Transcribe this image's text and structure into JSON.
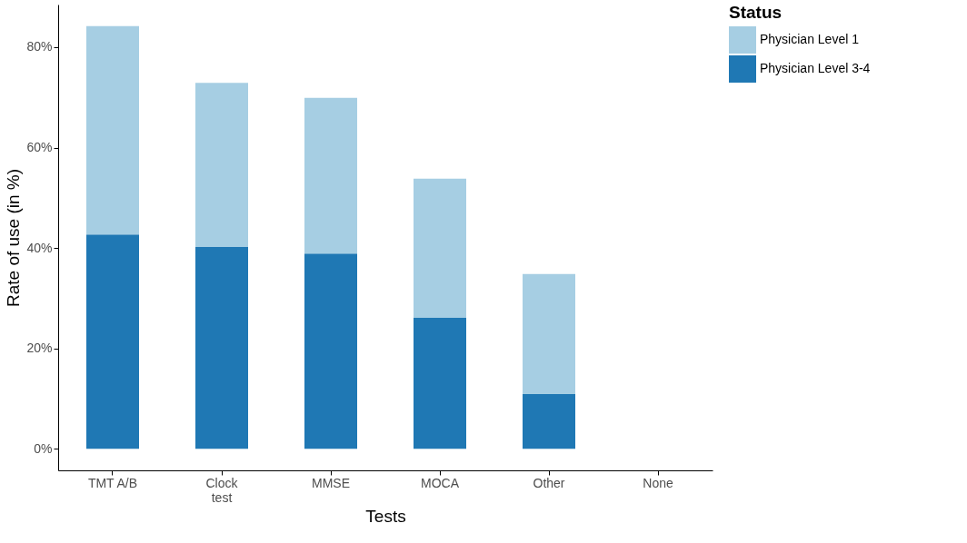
{
  "chart_data": {
    "type": "bar",
    "xlabel": "Tests",
    "ylabel": "Rate of use (in %)",
    "legend_title": "Status",
    "categories": [
      "TMT A/B",
      "Clock\ntest",
      "MMSE",
      "MOCA",
      "Other",
      "None"
    ],
    "stacked": true,
    "series": [
      {
        "name": "Physician Level 3-4",
        "color": "#1f78b4",
        "values": [
          42.7,
          40.2,
          38.9,
          26.1,
          10.9,
          0
        ]
      },
      {
        "name": "Physician Level 1",
        "color": "#a6cee3",
        "values": [
          41.5,
          32.7,
          31.0,
          27.7,
          23.9,
          0
        ]
      }
    ],
    "ylim": [
      -4.3,
      88.5
    ],
    "yticks": [
      {
        "value": 0,
        "label": "0%"
      },
      {
        "value": 20,
        "label": "20%"
      },
      {
        "value": 40,
        "label": "40%"
      },
      {
        "value": 60,
        "label": "60%"
      },
      {
        "value": 80,
        "label": "80%"
      }
    ],
    "grid": false,
    "legend": "right"
  }
}
